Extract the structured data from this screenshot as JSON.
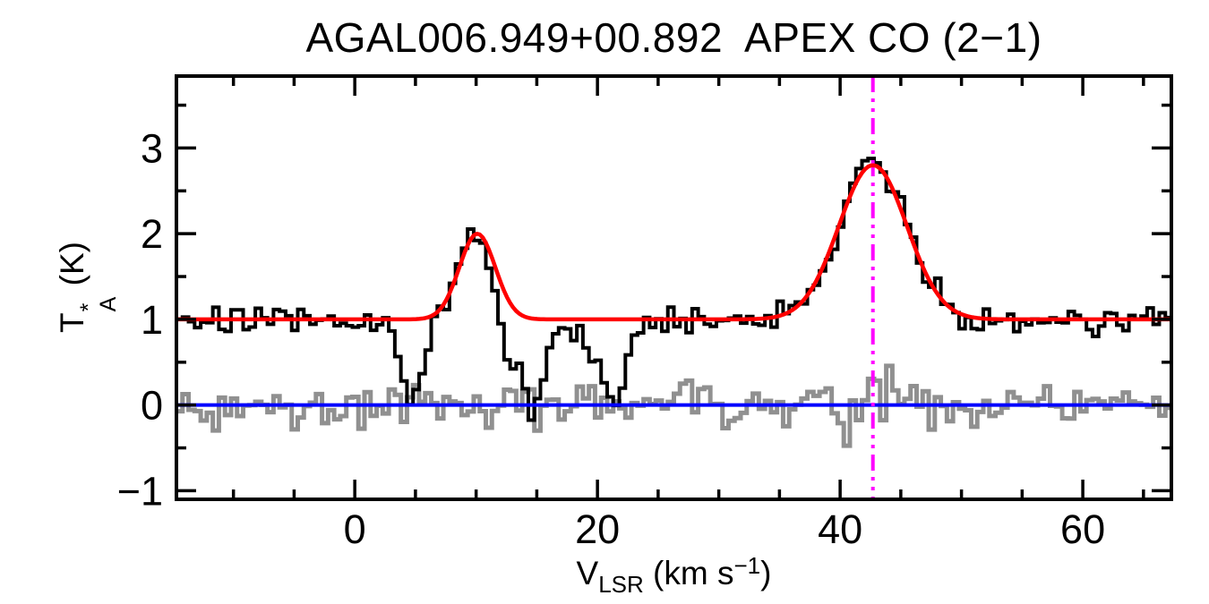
{
  "figure": {
    "background": "#ffffff"
  },
  "chart_data": {
    "type": "line",
    "title": "AGAL006.949+00.892  APEX CO (2−1)",
    "xlabel": {
      "main": "V",
      "sub": "LSR",
      "unit_pre": " (km s",
      "sup": "−1",
      "unit_post": ")"
    },
    "ylabel": {
      "main": "T",
      "sup": "*",
      "sub": "A",
      "unit": " (K)"
    },
    "x_axis": {
      "lim": [
        -14.7,
        67.3
      ],
      "major_ticks": [
        0,
        20,
        40,
        60
      ],
      "major_tick_labels": [
        "0",
        "20",
        "40",
        "60"
      ],
      "minor_tick_step": 5
    },
    "y_axis": {
      "lim": [
        -1.1,
        3.84
      ],
      "major_ticks": [
        -1,
        0,
        1,
        2,
        3
      ],
      "major_tick_labels": [
        "−1",
        "0",
        "1",
        "2",
        "3"
      ],
      "minor_tick_step": 0.5
    },
    "channel_width_kms": 0.5,
    "spectrum": {
      "color": "#000000",
      "baseline_K": 1.0,
      "noise_sigma_K": 0.075,
      "noise_seed": 20
    },
    "fit": {
      "color": "#ff0000",
      "baseline_K": 1.0,
      "components": [
        {
          "center_kms": 10.1,
          "amplitude_K": 1.0,
          "fwhm_kms": 3.5
        },
        {
          "center_kms": 42.7,
          "amplitude_K": 1.8,
          "fwhm_kms": 6.6
        }
      ]
    },
    "absorption_dips": [
      {
        "center_kms": 4.8,
        "depth_K": 0.95,
        "fwhm_kms": 2.2
      },
      {
        "center_kms": 12.3,
        "depth_K": 0.55,
        "fwhm_kms": 2.0
      },
      {
        "center_kms": 14.6,
        "depth_K": 0.95,
        "fwhm_kms": 1.8
      },
      {
        "center_kms": 21.3,
        "depth_K": 0.75,
        "fwhm_kms": 2.6
      },
      {
        "center_kms": 17.5,
        "depth_K": 0.18,
        "fwhm_kms": 9.0
      }
    ],
    "residual": {
      "color": "#909090",
      "noise_sigma_K": 0.12,
      "noise_seed": 77,
      "enhancement": {
        "center_kms": 42.7,
        "factor": 1.1,
        "sigma_kms": 3.0
      }
    },
    "zero_line": {
      "color": "#0000ff",
      "y_K": 0.0
    },
    "vlsr_marker": {
      "color": "#ff00ff",
      "v_kms": 42.7,
      "style": "dash-dot-dot"
    },
    "peaks": [
      {
        "v_kms": 10.1,
        "T_K": 2.0
      },
      {
        "v_kms": 42.7,
        "T_K": 2.8
      }
    ]
  }
}
